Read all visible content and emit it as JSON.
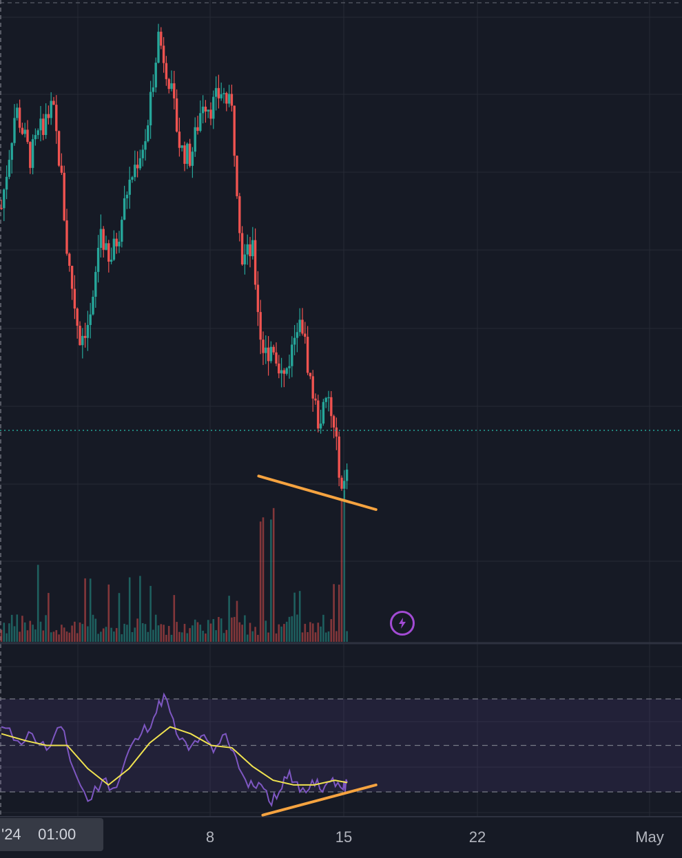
{
  "crosshair": {
    "date_label": "'24",
    "time_label": "01:00"
  },
  "x_axis": {
    "tick_labels": [
      {
        "label": "8",
        "day": 8
      },
      {
        "label": "15",
        "day": 15
      },
      {
        "label": "22",
        "day": 22
      },
      {
        "label": "May",
        "day": 32
      }
    ]
  },
  "colors": {
    "background": "#161a25",
    "grid": "#262a35",
    "up": "#26a69a",
    "down": "#ef5350",
    "rsi": "#7e57c2",
    "rsi_ma": "#f0e350",
    "trendline": "#f5a340",
    "alert": "#a24bd4"
  },
  "alert_icon": "lightning-alert-icon",
  "chart_data": {
    "type": "candlestick",
    "x_range_days": [
      0.8,
      33.8
    ],
    "last_price_close": 108,
    "price_range": [
      100,
      220
    ],
    "candles": [
      {
        "day": 0.8,
        "close": 172
      },
      {
        "day": 1.5,
        "close": 196
      },
      {
        "day": 2.2,
        "close": 184
      },
      {
        "day": 2.8,
        "close": 192
      },
      {
        "day": 3.3,
        "close": 196
      },
      {
        "day": 3.7,
        "close": 180
      },
      {
        "day": 4.0,
        "close": 161
      },
      {
        "day": 4.6,
        "close": 141
      },
      {
        "day": 5.2,
        "close": 146
      },
      {
        "day": 5.6,
        "close": 168
      },
      {
        "day": 6.0,
        "close": 158
      },
      {
        "day": 6.5,
        "close": 166
      },
      {
        "day": 6.9,
        "close": 176
      },
      {
        "day": 7.3,
        "close": 182
      },
      {
        "day": 7.9,
        "close": 190
      },
      {
        "day": 8.4,
        "close": 214
      },
      {
        "day": 8.9,
        "close": 204
      },
      {
        "day": 9.5,
        "close": 186
      },
      {
        "day": 10.0,
        "close": 184
      },
      {
        "day": 10.6,
        "close": 198
      },
      {
        "day": 11.0,
        "close": 196
      },
      {
        "day": 11.5,
        "close": 200
      },
      {
        "day": 12.0,
        "close": 195
      },
      {
        "day": 12.5,
        "close": 160
      },
      {
        "day": 13.0,
        "close": 162
      },
      {
        "day": 13.5,
        "close": 136
      },
      {
        "day": 14.0,
        "close": 140
      },
      {
        "day": 14.5,
        "close": 131
      },
      {
        "day": 14.9,
        "close": 138
      },
      {
        "day": 15.3,
        "close": 148
      },
      {
        "day": 15.8,
        "close": 131
      },
      {
        "day": 16.2,
        "close": 121
      },
      {
        "day": 16.7,
        "close": 126
      },
      {
        "day": 17.1,
        "close": 114
      },
      {
        "day": 17.4,
        "close": 104
      },
      {
        "day": 17.6,
        "close": 108
      }
    ],
    "volume": {
      "max": 100,
      "peak_days": [
        13.5,
        14.0,
        17.4
      ]
    },
    "rsi": {
      "levels": [
        70,
        50,
        30
      ],
      "values": [
        {
          "day": 0.8,
          "rsi": 58
        },
        {
          "day": 1.6,
          "rsi": 52
        },
        {
          "day": 2.3,
          "rsi": 55
        },
        {
          "day": 3.0,
          "rsi": 48
        },
        {
          "day": 3.7,
          "rsi": 58
        },
        {
          "day": 4.3,
          "rsi": 40
        },
        {
          "day": 5.0,
          "rsi": 26
        },
        {
          "day": 5.7,
          "rsi": 35
        },
        {
          "day": 6.4,
          "rsi": 32
        },
        {
          "day": 7.0,
          "rsi": 48
        },
        {
          "day": 7.6,
          "rsi": 55
        },
        {
          "day": 8.2,
          "rsi": 62
        },
        {
          "day": 8.7,
          "rsi": 72
        },
        {
          "day": 9.3,
          "rsi": 55
        },
        {
          "day": 9.9,
          "rsi": 48
        },
        {
          "day": 10.5,
          "rsi": 54
        },
        {
          "day": 11.1,
          "rsi": 47
        },
        {
          "day": 11.7,
          "rsi": 55
        },
        {
          "day": 12.2,
          "rsi": 45
        },
        {
          "day": 12.8,
          "rsi": 32
        },
        {
          "day": 13.3,
          "rsi": 34
        },
        {
          "day": 13.8,
          "rsi": 26
        },
        {
          "day": 14.3,
          "rsi": 30
        },
        {
          "day": 14.8,
          "rsi": 39
        },
        {
          "day": 15.3,
          "rsi": 30
        },
        {
          "day": 15.9,
          "rsi": 35
        },
        {
          "day": 16.4,
          "rsi": 30
        },
        {
          "day": 16.9,
          "rsi": 36
        },
        {
          "day": 17.4,
          "rsi": 31
        },
        {
          "day": 17.6,
          "rsi": 34
        }
      ],
      "ma": [
        {
          "day": 0.8,
          "rsi": 55
        },
        {
          "day": 2.0,
          "rsi": 52
        },
        {
          "day": 3.0,
          "rsi": 50
        },
        {
          "day": 4.0,
          "rsi": 50
        },
        {
          "day": 5.0,
          "rsi": 40
        },
        {
          "day": 6.0,
          "rsi": 33
        },
        {
          "day": 7.0,
          "rsi": 40
        },
        {
          "day": 8.0,
          "rsi": 51
        },
        {
          "day": 9.0,
          "rsi": 58
        },
        {
          "day": 10.0,
          "rsi": 55
        },
        {
          "day": 11.0,
          "rsi": 50
        },
        {
          "day": 12.0,
          "rsi": 49
        },
        {
          "day": 13.0,
          "rsi": 41
        },
        {
          "day": 14.0,
          "rsi": 35
        },
        {
          "day": 15.0,
          "rsi": 33
        },
        {
          "day": 16.0,
          "rsi": 33
        },
        {
          "day": 17.0,
          "rsi": 35
        },
        {
          "day": 17.6,
          "rsi": 34
        }
      ]
    },
    "trendlines": [
      {
        "pane": "price",
        "from": {
          "day": 13.3,
          "value": 108
        },
        "to": {
          "day": 19.0,
          "value": 100
        }
      },
      {
        "pane": "rsi",
        "from": {
          "day": 13.5,
          "value": 20
        },
        "to": {
          "day": 19.0,
          "value": 33
        }
      }
    ]
  }
}
